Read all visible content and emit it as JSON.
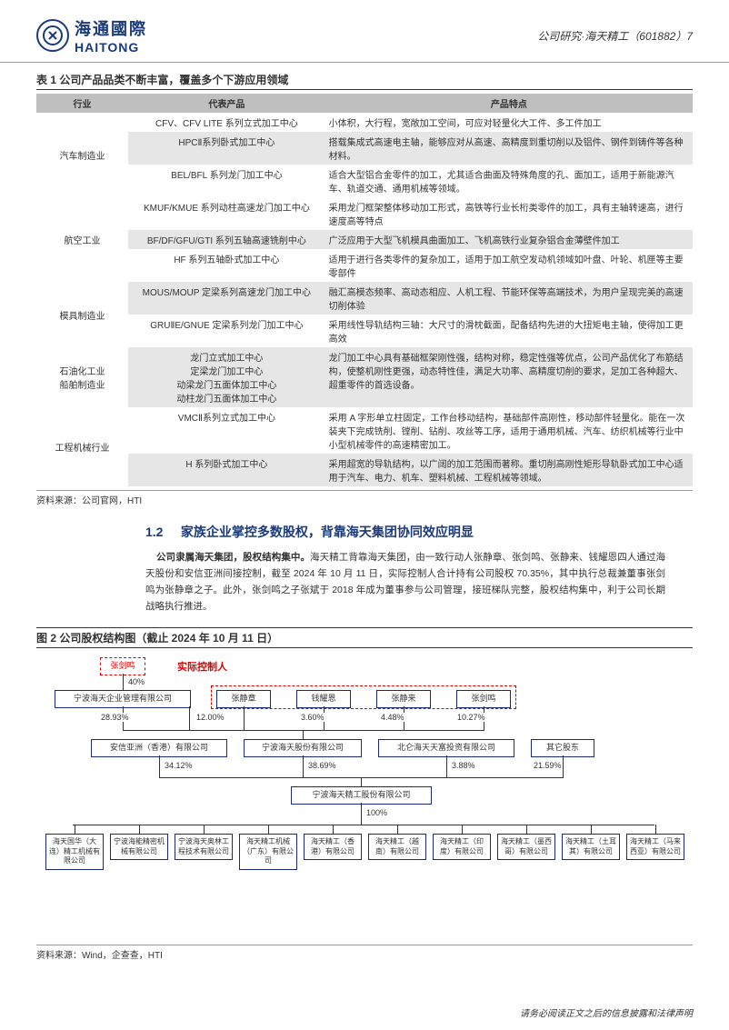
{
  "header": {
    "logo_cn": "海通國際",
    "logo_en": "HAITONG",
    "breadcrumb": "公司研究·海天精工（601882）7"
  },
  "table1": {
    "title": "表 1 公司产品品类不断丰富，覆盖多个下游应用领域",
    "columns": [
      "行业",
      "代表产品",
      "产品特点"
    ],
    "col_widths": [
      "14%",
      "30%",
      "56%"
    ],
    "rows": [
      {
        "industry": "汽车制造业",
        "rowspan": 3,
        "shaded": false,
        "product": "CFV、CFV LITE 系列立式加工中心",
        "feature": "小体积，大行程，宽敞加工空间，可应对轻量化大工件、多工件加工"
      },
      {
        "shaded": true,
        "product": "HPCⅡ系列卧式加工中心",
        "feature": "搭载集成式高速电主轴，能够应对从高速、高精度到重切削以及铝件、钢件到铸件等各种材料。"
      },
      {
        "shaded": false,
        "product": "BEL/BFL 系列龙门加工中心",
        "feature": "适合大型铝合金零件的加工，尤其适合曲面及特殊角度的孔、面加工，适用于新能源汽车、轨道交通、通用机械等领域。"
      },
      {
        "industry": "航空工业",
        "rowspan": 3,
        "shaded": false,
        "product": "KMUF/KMUE 系列动柱高速龙门加工中心",
        "feature": "采用龙门框架整体移动加工形式，高铁等行业长桁类零件的加工，具有主轴转速高，进行速度高等特点"
      },
      {
        "shaded": true,
        "product": "BF/DF/GFU/GTI 系列五轴高速铣削中心",
        "feature": "广泛应用于大型飞机模具曲面加工、飞机高铁行业复杂铝合金薄壁件加工"
      },
      {
        "shaded": false,
        "product": "HF 系列五轴卧式加工中心",
        "feature": "适用于进行各类零件的复杂加工，适用于加工航空发动机领域如叶盘、叶轮、机匣等主要零部件"
      },
      {
        "industry": "模具制造业",
        "rowspan": 2,
        "shaded": true,
        "product": "MOUS/MOUP 定梁系列高速龙门加工中心",
        "feature": "融汇高模态频率、高动态相应、人机工程、节能环保等高端技术，为用户呈现完美的高速切削体验"
      },
      {
        "shaded": false,
        "product": "GRUⅡE/GNUE 定梁系列龙门加工中心",
        "feature": "采用线性导轨结构三轴：大尺寸的滑枕截面，配备结构先进的大扭矩电主轴，使得加工更高效"
      },
      {
        "industry": "石油化工业\n船舶制造业",
        "rowspan": 1,
        "shaded": true,
        "product": "龙门立式加工中心\n定梁龙门加工中心\n动梁龙门五面体加工中心\n动柱龙门五面体加工中心",
        "feature": "龙门加工中心具有基础框架刚性强，结构对称，稳定性强等优点，公司产品优化了布筋结构，使整机刚性更强，动态特性佳，满足大功率、高精度切削的要求，足加工各种超大、超重零件的首选设备。"
      },
      {
        "industry": "工程机械行业",
        "rowspan": 2,
        "shaded": false,
        "product": "VMCⅡ系列立式加工中心",
        "feature": "采用 A 字形单立柱固定，工作台移动结构，基础部件高刚性，移动部件轻量化。能在一次装夹下完成铣削、镗削、钻削、攻丝等工序，适用于通用机械、汽车、纺织机械等行业中小型机械零件的高速精密加工。"
      },
      {
        "shaded": true,
        "product": "H 系列卧式加工中心",
        "feature": "采用超宽的导轨结构，以广阔的加工范围而著称。重切削高刚性矩形导轨卧式加工中心适用于汽车、电力、机车、塑料机械、工程机械等领域。"
      }
    ],
    "source": "资料来源：公司官网，HTI"
  },
  "section": {
    "heading_num": "1.2",
    "heading": "家族企业掌控多数股权，背靠海天集团协同效应明显",
    "para_bold": "公司隶属海天集团，股权结构集中。",
    "para_rest": "海天精工背靠海天集团，由一致行动人张静章、张剑鸣、张静来、钱耀恩四人通过海天股份和安信亚洲间接控制，截至 2024 年 10 月 11 日，实际控制人合计持有公司股权 70.35%，其中执行总裁兼董事张剑鸣为张静章之子。此外，张剑鸣之子张斌于 2018 年成为董事参与公司管理，接班梯队完整，股权结构集中，利于公司长期战略执行推进。"
  },
  "figure2": {
    "title": "图 2 公司股权结构图（截止 2024 年 10 月 11 日）",
    "controller_label": "实际控制人",
    "nodes": {
      "top": "张剑鸣",
      "pct_top": "40%",
      "a1": "宁波海天企业管理有限公司",
      "b1": "张静章",
      "b2": "钱耀恩",
      "b3": "张静来",
      "b4": "张剑鸣",
      "pct_a1": "28.93%",
      "pct_b1": "12.00%",
      "pct_b2": "3.60%",
      "pct_b3": "4.48%",
      "pct_b4": "10.27%",
      "c1": "安信亚洲（香港）有限公司",
      "c2": "宁波海天股份有限公司",
      "c3": "北仑海天天富投资有限公司",
      "c4": "其它股东",
      "pct_c1": "34.12%",
      "pct_c2": "38.69%",
      "pct_c3": "3.88%",
      "pct_c4": "21.59%",
      "d": "宁波海天精工股份有限公司",
      "pct_d": "100%",
      "e1": "海天国华（大连）精工机械有限公司",
      "e2": "宁波海能精密机械有限公司",
      "e3": "宁波海天奥林工程技术有限公司",
      "e4": "海天精工机械（广东）有限公司",
      "e5": "海天精工（香港）有限公司",
      "e6": "海天精工（越南）有限公司",
      "e7": "海天精工（印度）有限公司",
      "e8": "海天精工（墨西哥）有限公司",
      "e9": "海天精工（土耳其）有限公司",
      "e10": "海天精工（马来西亚）有限公司"
    },
    "source": "资料来源：Wind，企查查，HTI"
  },
  "footer": "请务必阅读正文之后的信息披露和法律声明",
  "colors": {
    "brand": "#1a3a7a",
    "node_border": "#1a2a7a",
    "highlight": "#d00",
    "header_gray": "#bfbfbf",
    "shade_gray": "#e6e6e6"
  }
}
